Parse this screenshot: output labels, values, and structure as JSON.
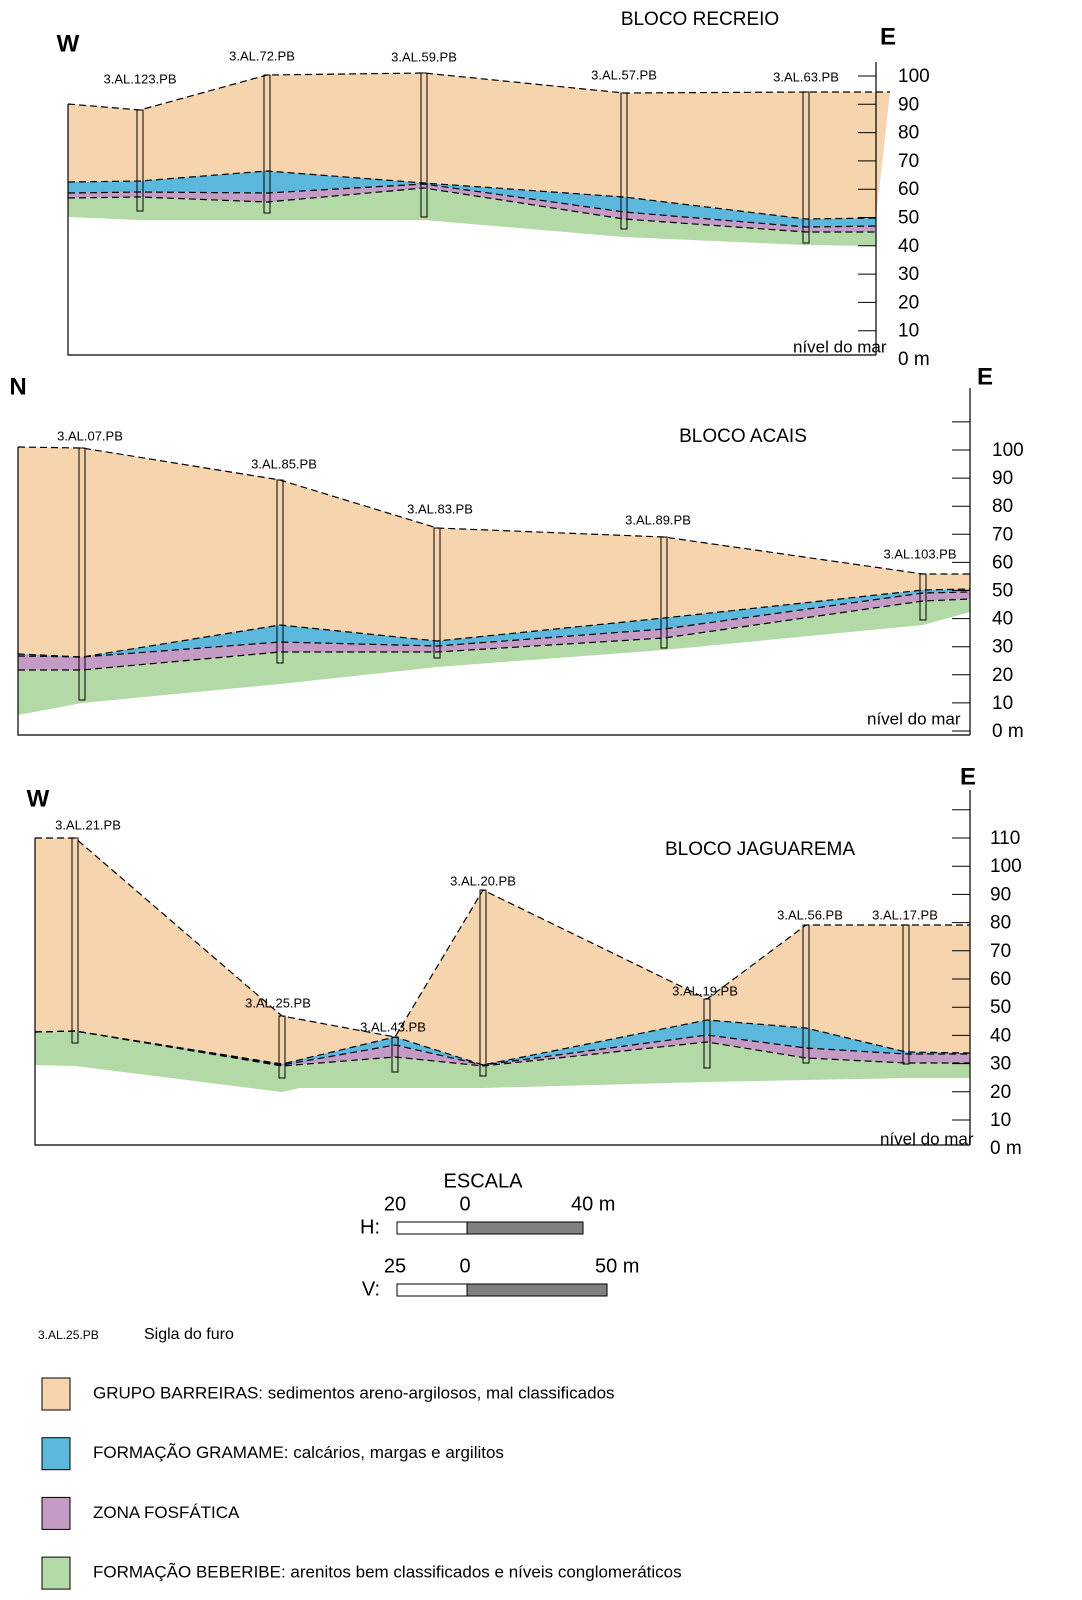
{
  "sections": [
    {
      "title": "BLOCO RECREIO",
      "left": "W",
      "right": "E",
      "sea_level": "nível do mar",
      "wells": [
        "3.AL.123.PB",
        "3.AL.72.PB",
        "3.AL.59.PB",
        "3.AL.57.PB",
        "3.AL.63.PB"
      ],
      "axis_labels": [
        "100",
        "90",
        "80",
        "70",
        "60",
        "50",
        "40",
        "30",
        "20",
        "10",
        "0 m"
      ]
    },
    {
      "title": "BLOCO ACAIS",
      "left": "N",
      "right": "E",
      "sea_level": "nível do mar",
      "wells": [
        "3.AL.07.PB",
        "3.AL.85.PB",
        "3.AL.83.PB",
        "3.AL.89.PB",
        "3.AL.103.PB"
      ],
      "axis_labels": [
        "100",
        "90",
        "80",
        "70",
        "60",
        "50",
        "40",
        "30",
        "20",
        "10",
        "0 m"
      ]
    },
    {
      "title": "BLOCO JAGUAREMA",
      "left": "W",
      "right": "E",
      "sea_level": "nível do mar",
      "wells": [
        "3.AL.21.PB",
        "3.AL.25.PB",
        "3.AL.43.PB",
        "3.AL.20.PB",
        "3.AL.19.PB",
        "3.AL.56.PB",
        "3.AL.17.PB"
      ],
      "axis_labels": [
        "110",
        "100",
        "90",
        "80",
        "70",
        "60",
        "50",
        "40",
        "30",
        "20",
        "10",
        "0 m"
      ]
    }
  ],
  "scale": {
    "title": "ESCALA",
    "h": {
      "label": "H:",
      "left": "20",
      "zero": "0",
      "right": "40 m"
    },
    "v": {
      "label": "V:",
      "left": "25",
      "zero": "0",
      "right": "50 m"
    }
  },
  "legend": {
    "sample": "3.AL.25.PB",
    "sample_text": "Sigla do furo",
    "items": [
      "GRUPO BARREIRAS: sedimentos areno-argilosos, mal classificados",
      "FORMAÇÃO GRAMAME: calcários, margas e argilitos",
      "ZONA FOSFÁTICA",
      "FORMAÇÃO BEBERIBE: arenitos bem classificados e níveis conglomeráticos"
    ]
  }
}
